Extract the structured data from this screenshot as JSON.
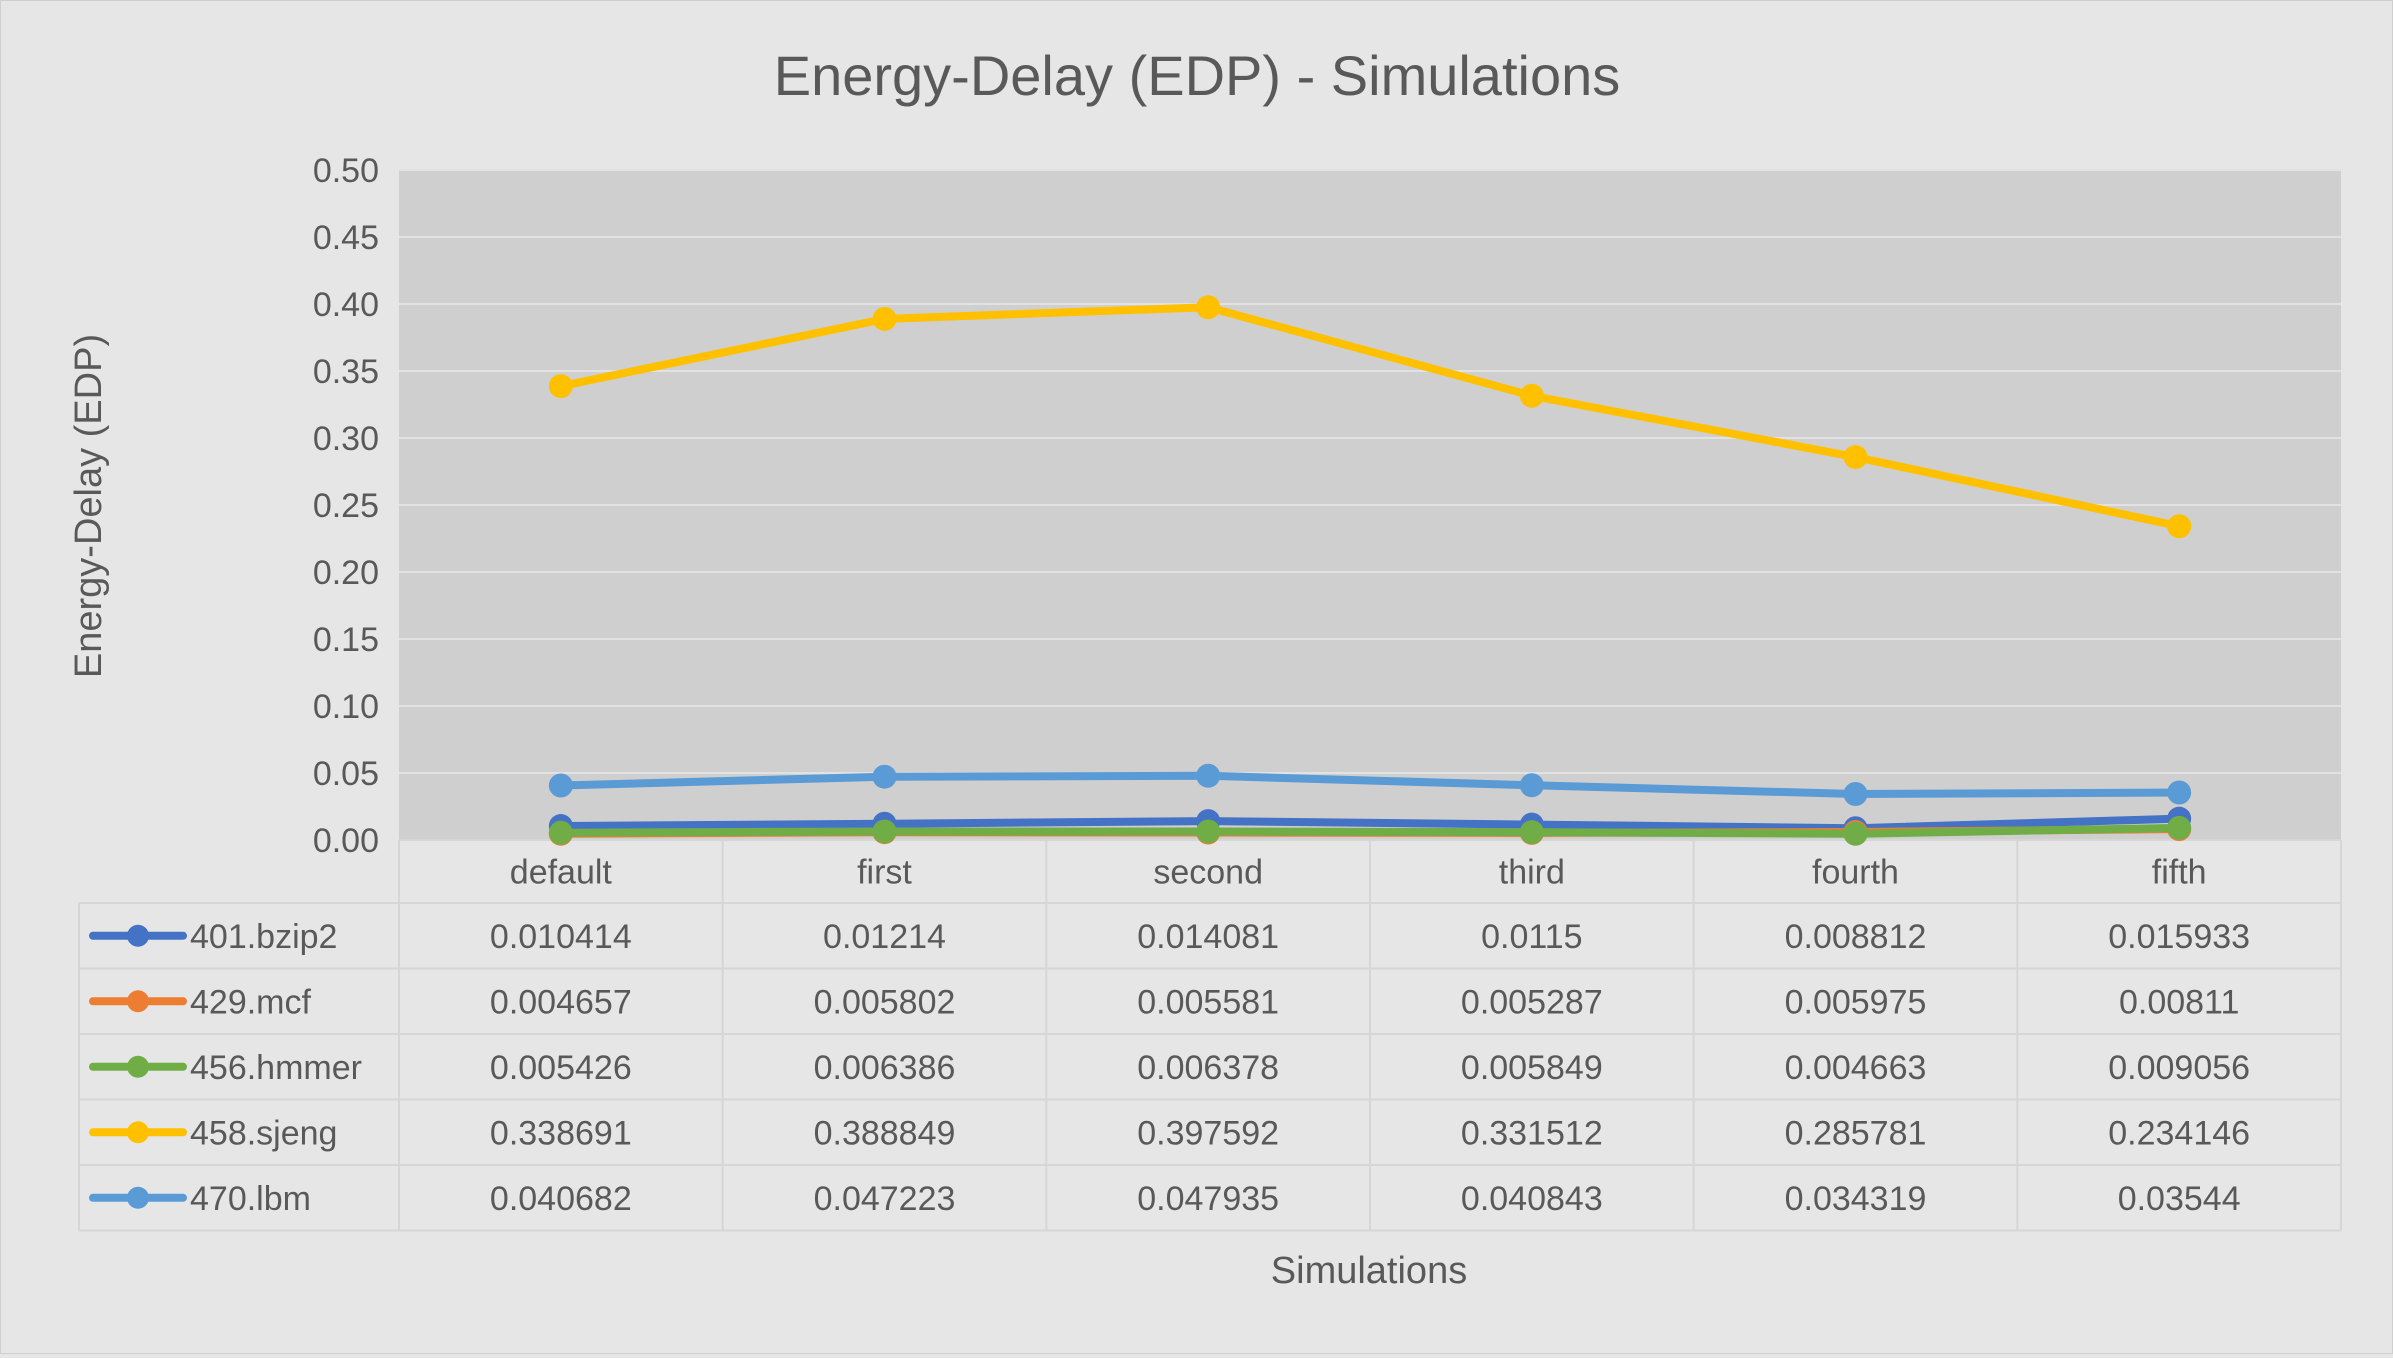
{
  "chart_data": {
    "type": "line",
    "title": "Energy-Delay (EDP) - Simulations",
    "xlabel": "Simulations",
    "ylabel": "Energy-Delay (EDP)",
    "ylim": [
      0,
      0.5
    ],
    "yticks": [
      "0.00",
      "0.05",
      "0.10",
      "0.15",
      "0.20",
      "0.25",
      "0.30",
      "0.35",
      "0.40",
      "0.45",
      "0.50"
    ],
    "categories": [
      "default",
      "first",
      "second",
      "third",
      "fourth",
      "fifth"
    ],
    "grid": true,
    "legend_placement": "data-table-left",
    "series": [
      {
        "name": "401.bzip2",
        "color": "#4472c4",
        "values": [
          0.010414,
          0.01214,
          0.014081,
          0.0115,
          0.008812,
          0.015933
        ],
        "labels": [
          "0.010414",
          "0.01214",
          "0.014081",
          "0.0115",
          "0.008812",
          "0.015933"
        ]
      },
      {
        "name": "429.mcf",
        "color": "#ed7d31",
        "values": [
          0.004657,
          0.005802,
          0.005581,
          0.005287,
          0.005975,
          0.00811
        ],
        "labels": [
          "0.004657",
          "0.005802",
          "0.005581",
          "0.005287",
          "0.005975",
          "0.00811"
        ]
      },
      {
        "name": "456.hmmer",
        "color": "#70ad47",
        "values": [
          0.005426,
          0.006386,
          0.006378,
          0.005849,
          0.004663,
          0.009056
        ],
        "labels": [
          "0.005426",
          "0.006386",
          "0.006378",
          "0.005849",
          "0.004663",
          "0.009056"
        ]
      },
      {
        "name": "458.sjeng",
        "color": "#ffc000",
        "values": [
          0.338691,
          0.388849,
          0.397592,
          0.331512,
          0.285781,
          0.234146
        ],
        "labels": [
          "0.338691",
          "0.388849",
          "0.397592",
          "0.331512",
          "0.285781",
          "0.234146"
        ]
      },
      {
        "name": "470.lbm",
        "color": "#5b9bd5",
        "values": [
          0.040682,
          0.047223,
          0.047935,
          0.040843,
          0.034319,
          0.03544
        ],
        "labels": [
          "0.040682",
          "0.047223",
          "0.047935",
          "0.040843",
          "0.034319",
          "0.03544"
        ]
      }
    ]
  }
}
